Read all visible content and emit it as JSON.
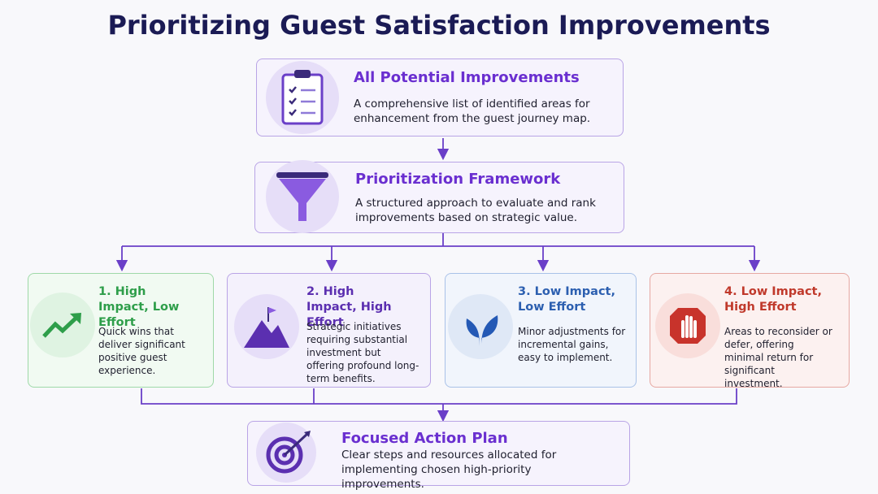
{
  "title": "Prioritizing Guest Satisfaction Improvements",
  "nodes": [
    {
      "title": "All Potential Improvements",
      "description": "A comprehensive list of identified areas for enhancement from the guest journey map."
    },
    {
      "title": "Prioritization Framework",
      "description": "A structured approach to evaluate and rank improvements based on strategic value."
    },
    {
      "title": "1. High Impact, Low Effort",
      "description": "Quick wins that deliver significant positive guest experience."
    },
    {
      "title": "2. High Impact, High Effort",
      "description": "Strategic initiatives requiring substantial investment but offering profound long-term benefits."
    },
    {
      "title": "3. Low Impact, Low Effort",
      "description": "Minor adjustments for incremental gains, easy to implement."
    },
    {
      "title": "4. Low Impact, High Effort",
      "description": "Areas to reconsider or defer, offering minimal return for significant investment."
    },
    {
      "title": "Focused Action Plan",
      "description": "Clear steps and resources allocated for implementing chosen high-priority improvements."
    }
  ]
}
